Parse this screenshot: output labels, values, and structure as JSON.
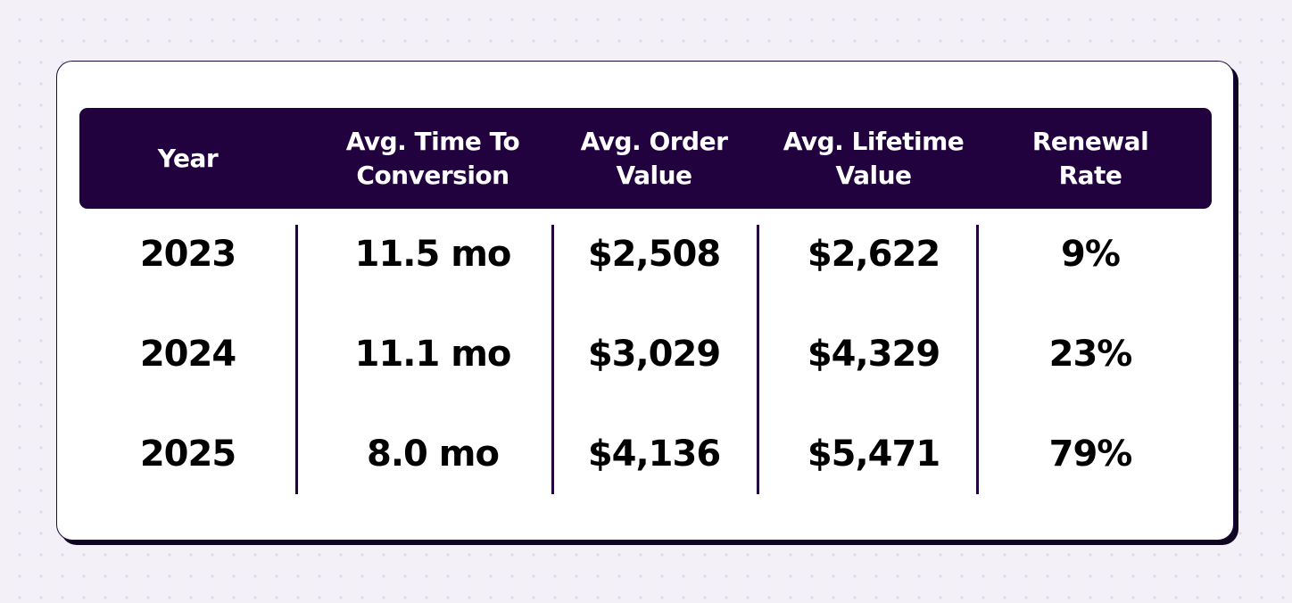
{
  "chart_data": {
    "type": "table",
    "columns": [
      "Year",
      "Avg. Time To Conversion",
      "Avg. Order Value",
      "Avg. Lifetime Value",
      "Renewal Rate"
    ],
    "header_lines": [
      [
        "Year"
      ],
      [
        "Avg. Time To",
        "Conversion"
      ],
      [
        "Avg. Order",
        "Value"
      ],
      [
        "Avg. Lifetime",
        "Value"
      ],
      [
        "Renewal",
        "Rate"
      ]
    ],
    "rows": [
      [
        "2023",
        "11.5 mo",
        "$2,508",
        "$2,622",
        "9%"
      ],
      [
        "2024",
        "11.1 mo",
        "$3,029",
        "$4,329",
        "23%"
      ],
      [
        "2025",
        "8.0 mo",
        "$4,136",
        "$5,471",
        "79%"
      ]
    ]
  },
  "colors": {
    "header_bg": "#22013f",
    "header_text": "#ffffff",
    "divider": "#22013f",
    "card_border": "#1e0a3c",
    "page_bg": "#f3f1f7"
  }
}
